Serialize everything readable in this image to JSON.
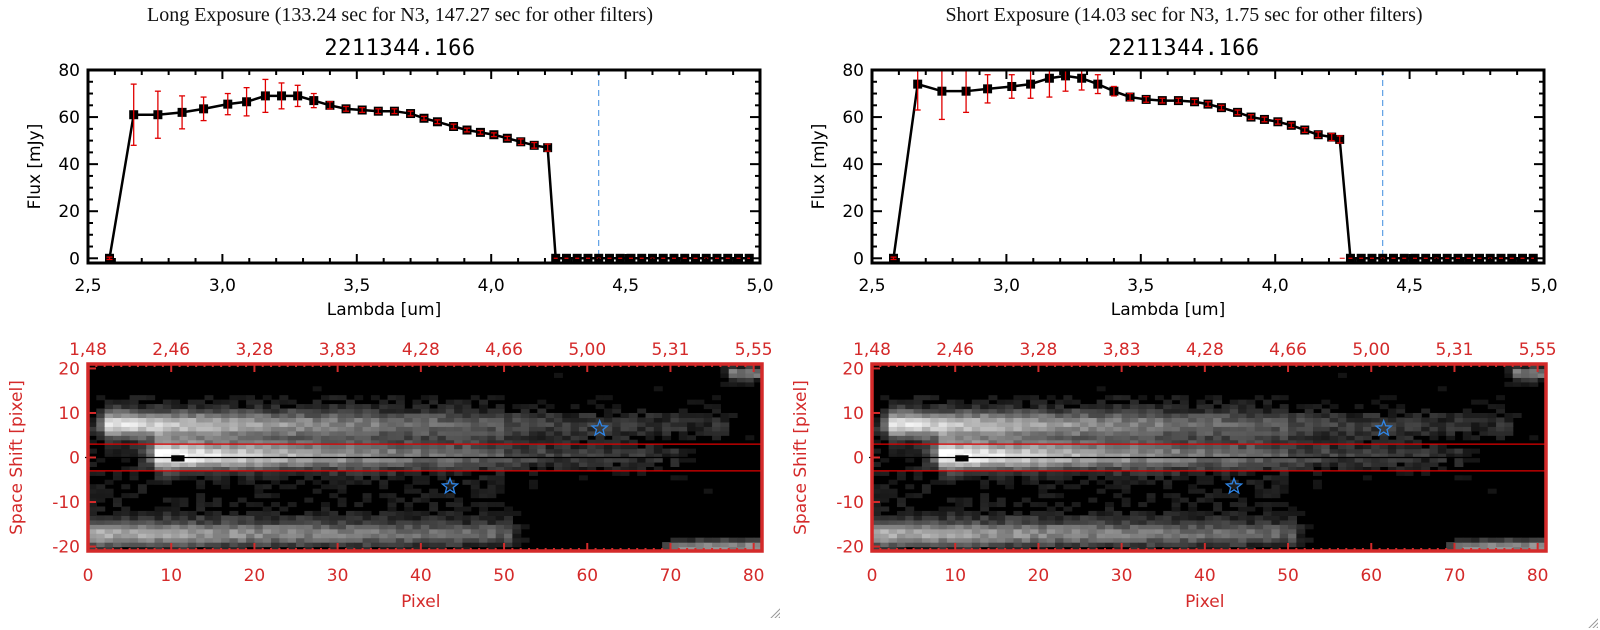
{
  "panels": [
    {
      "title": "Long Exposure (133.24 sec for N3, 147.27 sec for other filters)",
      "object_id": "2211344.166"
    },
    {
      "title": "Short Exposure (14.03 sec for N3, 1.75 sec for other filters)",
      "object_id": "2211344.166"
    }
  ],
  "colors": {
    "axis_red": "#d42a2a",
    "error_red": "#e00000",
    "marker": "#000000",
    "line_blue": "#3b8be0",
    "star_blue": "#2f86e8"
  },
  "chart_data": [
    {
      "type": "line",
      "panel": "long",
      "title": "2211344.166",
      "xlabel": "Lambda [um]",
      "ylabel": "Flux [mJy]",
      "xlim": [
        2.5,
        5.0
      ],
      "ylim": [
        -2,
        80
      ],
      "xticks": [
        "2.5",
        "3.0",
        "3.5",
        "4.0",
        "4.5",
        "5.0"
      ],
      "yticks": [
        "0",
        "20",
        "40",
        "60",
        "80"
      ],
      "vline_x": 4.4,
      "zero_line": true,
      "x": [
        2.58,
        2.67,
        2.76,
        2.85,
        2.93,
        3.02,
        3.09,
        3.16,
        3.22,
        3.28,
        3.34,
        3.4,
        3.46,
        3.52,
        3.58,
        3.64,
        3.7,
        3.75,
        3.8,
        3.86,
        3.91,
        3.96,
        4.01,
        4.06,
        4.11,
        4.16,
        4.21,
        4.24,
        4.28,
        4.32,
        4.36,
        4.4,
        4.44,
        4.48,
        4.52,
        4.56,
        4.6,
        4.64,
        4.68,
        4.72,
        4.76,
        4.8,
        4.84,
        4.88,
        4.92,
        4.96
      ],
      "y": [
        0,
        61,
        61,
        62,
        63.5,
        65.5,
        66.5,
        69,
        69,
        69,
        67,
        65,
        63.5,
        63,
        62.5,
        62.5,
        61.5,
        59.5,
        58,
        56,
        54.5,
        53.5,
        52.5,
        51,
        49.5,
        48,
        47,
        0,
        0,
        0,
        0,
        0,
        0,
        0,
        0,
        0,
        0,
        0,
        0,
        0,
        0,
        0,
        0,
        0,
        0,
        0
      ],
      "yerr": [
        0.5,
        13,
        10,
        7,
        5,
        4.5,
        6,
        7,
        5.5,
        4.5,
        3,
        1.5,
        1,
        1,
        1,
        1,
        1,
        0.8,
        0.8,
        1,
        0.8,
        0.8,
        0.8,
        0.8,
        1.2,
        1.2,
        1.5,
        0,
        0,
        0,
        0,
        0,
        0,
        0,
        0,
        0,
        0,
        0,
        0,
        0,
        0,
        0,
        0,
        0,
        0,
        0
      ]
    },
    {
      "type": "line",
      "panel": "short",
      "title": "2211344.166",
      "xlabel": "Lambda [um]",
      "ylabel": "Flux [mJy]",
      "xlim": [
        2.5,
        5.0
      ],
      "ylim": [
        -2,
        80
      ],
      "xticks": [
        "2.5",
        "3.0",
        "3.5",
        "4.0",
        "4.5",
        "5.0"
      ],
      "yticks": [
        "0",
        "20",
        "40",
        "60",
        "80"
      ],
      "vline_x": 4.4,
      "zero_line": true,
      "x": [
        2.58,
        2.67,
        2.76,
        2.85,
        2.93,
        3.02,
        3.09,
        3.16,
        3.22,
        3.28,
        3.34,
        3.4,
        3.46,
        3.52,
        3.58,
        3.64,
        3.7,
        3.75,
        3.8,
        3.86,
        3.91,
        3.96,
        4.01,
        4.06,
        4.11,
        4.16,
        4.21,
        4.24,
        4.28,
        4.32,
        4.36,
        4.4,
        4.44,
        4.48,
        4.52,
        4.56,
        4.6,
        4.64,
        4.68,
        4.72,
        4.76,
        4.8,
        4.84,
        4.88,
        4.92,
        4.96
      ],
      "y": [
        0,
        74,
        71,
        71,
        72,
        73,
        74,
        76.5,
        77.5,
        76.5,
        74,
        71,
        68.5,
        67.5,
        67,
        67,
        66.5,
        65.5,
        64,
        62,
        60,
        59,
        58,
        56.5,
        54.5,
        52.5,
        51.5,
        50.5,
        0,
        0,
        0,
        0,
        0,
        0,
        0,
        0,
        0,
        0,
        0,
        0,
        0,
        0,
        0,
        0,
        0,
        0
      ],
      "yerr": [
        0.5,
        11,
        12,
        9,
        6,
        5,
        6,
        8,
        6.5,
        5,
        4,
        2,
        1.5,
        1.2,
        1,
        1,
        1,
        1,
        1,
        1,
        1,
        1,
        1,
        1,
        1,
        1.2,
        1.5,
        1.5,
        0,
        0,
        0,
        0,
        0,
        0,
        0,
        0,
        0,
        0,
        0,
        0,
        0,
        0,
        0,
        0
      ]
    },
    {
      "type": "heatmap",
      "panel": "long",
      "xlabel": "Pixel",
      "ylabel": "Space Shift [pixel]",
      "xlim": [
        0,
        81
      ],
      "ylim": [
        -21,
        21
      ],
      "xticks": [
        "0",
        "10",
        "20",
        "30",
        "40",
        "50",
        "60",
        "70",
        "80"
      ],
      "yticks": [
        "-20",
        "-10",
        "0",
        "10",
        "20"
      ],
      "top_axis_ticks": [
        "1.48",
        "2.46",
        "3.28",
        "3.83",
        "4.28",
        "4.66",
        "5.00",
        "5.31",
        "5.55"
      ],
      "aperture_lines_y": [
        3,
        -3
      ],
      "center_line_y": 0,
      "stars": [
        {
          "x": 43.5,
          "y": -6.5
        },
        {
          "x": 61.5,
          "y": 6.5
        }
      ],
      "features": [
        {
          "name": "main-trace",
          "x0": 8,
          "x1": 70,
          "y": 0.5,
          "width": 3.2,
          "peak": 1.0,
          "decay": 0.028
        },
        {
          "name": "upper-trace",
          "x0": 2,
          "x1": 76,
          "y": 7.5,
          "width": 3.0,
          "peak": 0.85,
          "decay": 0.022
        },
        {
          "name": "lower-trace",
          "x0": 0,
          "x1": 50,
          "y": -17,
          "width": 3.0,
          "peak": 0.7,
          "decay": 0.012
        },
        {
          "name": "bottom-right-blob",
          "x0": 70,
          "x1": 80,
          "y": -20,
          "width": 1.5,
          "peak": 0.6,
          "decay": 0.0
        },
        {
          "name": "top-right-blob",
          "x0": 77,
          "x1": 80,
          "y": 19,
          "width": 1.5,
          "peak": 0.5,
          "decay": 0.0
        }
      ]
    },
    {
      "type": "heatmap",
      "panel": "short",
      "xlabel": "Pixel",
      "ylabel": "Space Shift [pixel]",
      "xlim": [
        0,
        81
      ],
      "ylim": [
        -21,
        21
      ],
      "xticks": [
        "0",
        "10",
        "20",
        "30",
        "40",
        "50",
        "60",
        "70",
        "80"
      ],
      "yticks": [
        "-20",
        "-10",
        "0",
        "10",
        "20"
      ],
      "top_axis_ticks": [
        "1.48",
        "2.46",
        "3.28",
        "3.83",
        "4.28",
        "4.66",
        "5.00",
        "5.31",
        "5.55"
      ],
      "aperture_lines_y": [
        3,
        -3
      ],
      "center_line_y": 0,
      "stars": [
        {
          "x": 43.5,
          "y": -6.5
        },
        {
          "x": 61.5,
          "y": 6.5
        }
      ],
      "features": [
        {
          "name": "main-trace",
          "x0": 8,
          "x1": 70,
          "y": 0.5,
          "width": 3.2,
          "peak": 1.0,
          "decay": 0.028
        },
        {
          "name": "upper-trace",
          "x0": 2,
          "x1": 76,
          "y": 7.5,
          "width": 3.0,
          "peak": 0.85,
          "decay": 0.022
        },
        {
          "name": "lower-trace",
          "x0": 0,
          "x1": 50,
          "y": -17,
          "width": 3.0,
          "peak": 0.7,
          "decay": 0.012
        },
        {
          "name": "bottom-right-blob",
          "x0": 70,
          "x1": 80,
          "y": -20,
          "width": 1.5,
          "peak": 0.6,
          "decay": 0.0
        },
        {
          "name": "top-right-blob",
          "x0": 77,
          "x1": 80,
          "y": 19,
          "width": 1.5,
          "peak": 0.5,
          "decay": 0.0
        }
      ]
    }
  ]
}
